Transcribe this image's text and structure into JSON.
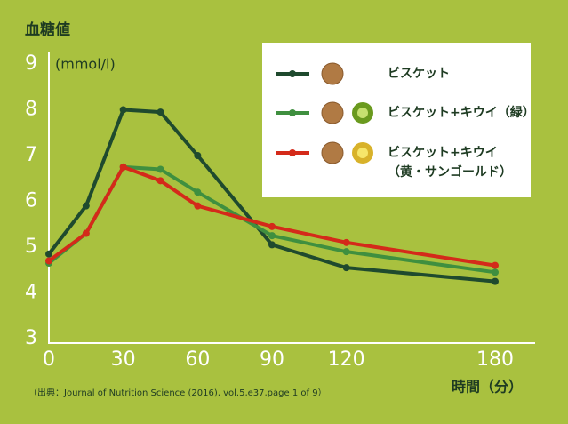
{
  "chart_data": {
    "type": "line",
    "title": "血糖値",
    "y_unit": "(mmol/l)",
    "x_label": "時間（分）",
    "source": "（出典：Journal of Nutrition Science (2016), vol.5,e37,page 1 of 9）",
    "x": [
      0,
      15,
      30,
      45,
      60,
      90,
      120,
      180
    ],
    "xlim": [
      0,
      180
    ],
    "xticks": [
      0,
      30,
      60,
      90,
      120,
      180
    ],
    "ylim": [
      3,
      9
    ],
    "yticks": [
      3,
      4,
      5,
      6,
      7,
      8,
      9
    ],
    "series": [
      {
        "name": "ビスケット",
        "color": "#1f4a2e",
        "values": [
          4.85,
          5.9,
          8.0,
          7.95,
          7.0,
          5.05,
          4.55,
          4.25
        ]
      },
      {
        "name": "ビスケット+キウイ（緑）",
        "color": "#3f8f3f",
        "values": [
          4.65,
          5.3,
          6.75,
          6.7,
          6.2,
          5.25,
          4.9,
          4.45
        ]
      },
      {
        "name": "ビスケット+キウイ\n（黄・サンゴールド）",
        "color": "#d42a1a",
        "values": [
          4.7,
          5.3,
          6.75,
          6.45,
          5.9,
          5.45,
          5.1,
          4.6
        ]
      }
    ]
  }
}
